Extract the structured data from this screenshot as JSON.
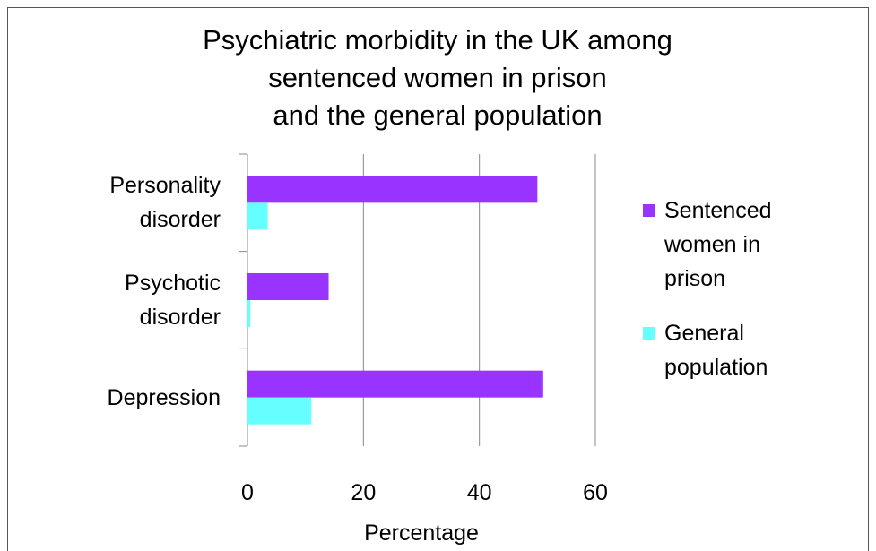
{
  "chart_data": {
    "type": "bar",
    "orientation": "horizontal",
    "title": "Psychiatric morbidity in the UK among\nsentenced women in prison\nand the general population",
    "categories": [
      "Personality disorder",
      "Psychotic disorder",
      "Depression"
    ],
    "series": [
      {
        "name": "Sentenced women in prison",
        "color": "#9933ff",
        "values": [
          50,
          14,
          51
        ]
      },
      {
        "name": "General population",
        "color": "#66ffff",
        "values": [
          3.5,
          0.5,
          11
        ]
      }
    ],
    "xlabel": "Percentage",
    "xlim": [
      0,
      60
    ],
    "xticks": [
      0,
      20,
      40,
      60
    ],
    "grid": true,
    "legend": "right"
  }
}
